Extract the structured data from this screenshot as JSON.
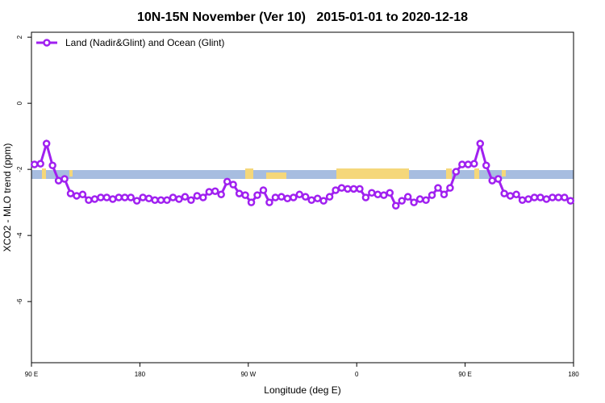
{
  "chart_data": {
    "type": "line",
    "title": "10N-15N November (Ver 10)   2015-01-01 to 2020-12-18",
    "x_label": "Longitude (deg E)",
    "y_label": "XCO2 - MLO trend (ppm)",
    "xlim": [
      90,
      540
    ],
    "ylim": [
      -7.85,
      2.15
    ],
    "xticks": [
      {
        "value": 90,
        "label": "90 E"
      },
      180,
      {
        "value": 270,
        "label": "90 W"
      },
      {
        "value": 360,
        "label": "0"
      },
      {
        "value": 450,
        "label": "90 E"
      },
      {
        "value": 540,
        "label": "180"
      }
    ],
    "yticks": [
      2,
      0,
      -2,
      -4,
      -6
    ],
    "legend": "top-left",
    "x": [
      92.5,
      97.5,
      102.5,
      107.5,
      112.5,
      117.5,
      122.5,
      127.5,
      132.5,
      137.5,
      142.5,
      147.5,
      152.5,
      157.5,
      162.5,
      167.5,
      172.5,
      177.5,
      182.5,
      187.5,
      192.5,
      197.5,
      202.5,
      207.5,
      212.5,
      217.5,
      222.5,
      227.5,
      232.5,
      237.5,
      242.5,
      247.5,
      252.5,
      257.5,
      262.5,
      267.5,
      272.5,
      277.5,
      282.5,
      287.5,
      292.5,
      297.5,
      302.5,
      307.5,
      312.5,
      317.5,
      322.5,
      327.5,
      332.5,
      337.5,
      342.5,
      347.5,
      352.5,
      357.5,
      362.5,
      367.5,
      372.5,
      377.5,
      382.5,
      387.5,
      392.5,
      397.5,
      402.5,
      407.5,
      412.5,
      417.5,
      422.5,
      427.5,
      432.5,
      437.5,
      442.5,
      447.5,
      452.5,
      457.5,
      462.5,
      467.5,
      472.5,
      477.5,
      482.5,
      487.5,
      492.5,
      497.5,
      502.5,
      507.5,
      512.5,
      517.5,
      522.5,
      527.5,
      532.5,
      537.5
    ],
    "series": [
      {
        "name": "Land (Nadir&Glint) and Ocean (Glint)",
        "color": "#a020f0",
        "values": [
          -1.85,
          -1.83,
          -1.22,
          -1.88,
          -2.34,
          -2.29,
          -2.73,
          -2.8,
          -2.76,
          -2.93,
          -2.9,
          -2.85,
          -2.85,
          -2.9,
          -2.85,
          -2.85,
          -2.85,
          -2.95,
          -2.85,
          -2.88,
          -2.93,
          -2.93,
          -2.93,
          -2.85,
          -2.9,
          -2.83,
          -2.93,
          -2.8,
          -2.85,
          -2.68,
          -2.66,
          -2.76,
          -2.37,
          -2.46,
          -2.73,
          -2.78,
          -3.0,
          -2.78,
          -2.63,
          -3.0,
          -2.85,
          -2.83,
          -2.88,
          -2.85,
          -2.76,
          -2.83,
          -2.93,
          -2.88,
          -2.95,
          -2.83,
          -2.63,
          -2.56,
          -2.59,
          -2.59,
          -2.59,
          -2.85,
          -2.71,
          -2.76,
          -2.78,
          -2.71,
          -3.1,
          -2.95,
          -2.83,
          -3.0,
          -2.9,
          -2.93,
          -2.78,
          -2.56,
          -2.76,
          -2.56,
          -2.07,
          -1.85,
          -1.85,
          -1.83,
          -1.22,
          -1.88,
          -2.34,
          -2.29,
          -2.73,
          -2.8,
          -2.76,
          -2.93,
          -2.9,
          -2.85,
          -2.85,
          -2.9,
          -2.85,
          -2.85,
          -2.85,
          -2.95
        ]
      }
    ]
  }
}
